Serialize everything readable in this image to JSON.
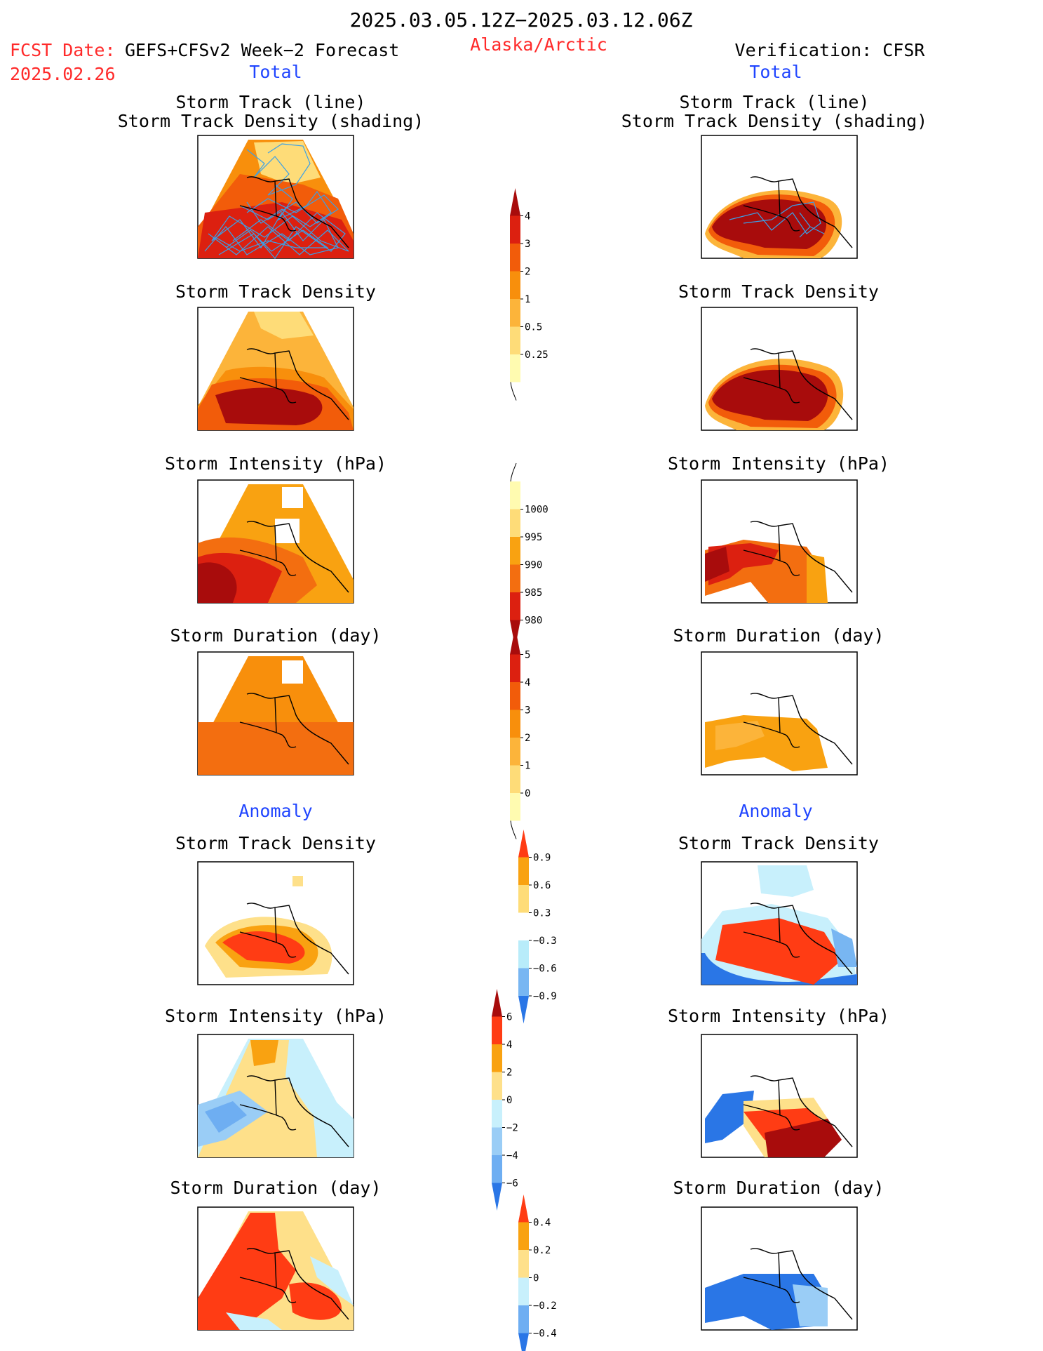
{
  "header": {
    "period": "2025.03.05.12Z−2025.03.12.06Z",
    "fcst_label": "FCST Date:",
    "fcst_model": "GEFS+CFSv2 Week−2 Forecast",
    "fcst_date": "2025.02.26",
    "region": "Alaska/Arctic",
    "verification": "Verification: CFSR"
  },
  "colors": {
    "red": "#ff2a2a",
    "blue": "#2045ff",
    "black": "#000000",
    "track_blue": "#3aa0e8"
  },
  "sections": {
    "total_left": "Total",
    "total_right": "Total",
    "anomaly_left": "Anomaly",
    "anomaly_right": "Anomaly"
  },
  "panel_titles": {
    "track_line": "Storm Track (line)",
    "track_shading": "Storm Track Density (shading)",
    "track_density": "Storm Track Density",
    "intensity": "Storm Intensity (hPa)",
    "duration": "Storm Duration (day)"
  },
  "colorbars": {
    "density": {
      "ticks": [
        "0.25",
        "0.5",
        "1",
        "2",
        "3",
        "4"
      ],
      "colors": [
        "#fffbb0",
        "#fedc78",
        "#fcb43a",
        "#f88f0c",
        "#f25c0a",
        "#dc2010",
        "#a80c0c"
      ]
    },
    "intensity": {
      "ticks": [
        "1000",
        "995",
        "990",
        "985",
        "980"
      ],
      "colors": [
        "#fffbb0",
        "#fedc78",
        "#f9a211",
        "#f36e10",
        "#dc2010",
        "#a80c0c"
      ]
    },
    "duration": {
      "ticks": [
        "0",
        "1",
        "2",
        "3",
        "4",
        "5"
      ],
      "colors": [
        "#fffbb0",
        "#fedc78",
        "#fcb43a",
        "#f88f0c",
        "#f25c0a",
        "#dc2010",
        "#a80c0c"
      ]
    },
    "density_anom": {
      "ticks": [
        "0.9",
        "0.6",
        "0.3",
        "−0.3",
        "−0.6",
        "−0.9"
      ],
      "colors": [
        "#ff3c14",
        "#f9a211",
        "#fedc78",
        "#ffffff",
        "#b8ecfa",
        "#78b6f2",
        "#2a76e6"
      ]
    },
    "intensity_anom": {
      "ticks": [
        "6",
        "4",
        "2",
        "0",
        "−2",
        "−4",
        "−6"
      ],
      "colors": [
        "#a80c0c",
        "#ff3c14",
        "#f9a211",
        "#fee08a",
        "#c8f0fc",
        "#9acdf6",
        "#6eaef2",
        "#2a76e6"
      ]
    },
    "duration_anom": {
      "ticks": [
        "0.4",
        "0.2",
        "0",
        "−0.2",
        "−0.4"
      ],
      "colors": [
        "#ff3c14",
        "#f9a211",
        "#fee08a",
        "#c8f0fc",
        "#6eaef2",
        "#2a76e6"
      ]
    }
  },
  "chart_data": [
    {
      "type": "heatmap",
      "title": "Storm Track (line) / Storm Track Density (shading)",
      "column": "GEFS+CFSv2 Week-2 Forecast",
      "section": "Total",
      "overlay": "storm track lines"
    },
    {
      "type": "heatmap",
      "title": "Storm Track Density",
      "column": "GEFS+CFSv2 Week-2 Forecast",
      "section": "Total"
    },
    {
      "type": "heatmap",
      "title": "Storm Intensity (hPa)",
      "column": "GEFS+CFSv2 Week-2 Forecast",
      "section": "Total"
    },
    {
      "type": "heatmap",
      "title": "Storm Duration (day)",
      "column": "GEFS+CFSv2 Week-2 Forecast",
      "section": "Total"
    },
    {
      "type": "heatmap",
      "title": "Storm Track Density",
      "column": "GEFS+CFSv2 Week-2 Forecast",
      "section": "Anomaly"
    },
    {
      "type": "heatmap",
      "title": "Storm Intensity (hPa)",
      "column": "GEFS+CFSv2 Week-2 Forecast",
      "section": "Anomaly"
    },
    {
      "type": "heatmap",
      "title": "Storm Duration (day)",
      "column": "GEFS+CFSv2 Week-2 Forecast",
      "section": "Anomaly"
    },
    {
      "type": "heatmap",
      "title": "Storm Track (line) / Storm Track Density (shading)",
      "column": "Verification: CFSR",
      "section": "Total",
      "overlay": "storm track lines"
    },
    {
      "type": "heatmap",
      "title": "Storm Track Density",
      "column": "Verification: CFSR",
      "section": "Total"
    },
    {
      "type": "heatmap",
      "title": "Storm Intensity (hPa)",
      "column": "Verification: CFSR",
      "section": "Total"
    },
    {
      "type": "heatmap",
      "title": "Storm Duration (day)",
      "column": "Verification: CFSR",
      "section": "Total"
    },
    {
      "type": "heatmap",
      "title": "Storm Track Density",
      "column": "Verification: CFSR",
      "section": "Anomaly"
    },
    {
      "type": "heatmap",
      "title": "Storm Intensity (hPa)",
      "column": "Verification: CFSR",
      "section": "Anomaly"
    },
    {
      "type": "heatmap",
      "title": "Storm Duration (day)",
      "column": "Verification: CFSR",
      "section": "Anomaly"
    }
  ]
}
